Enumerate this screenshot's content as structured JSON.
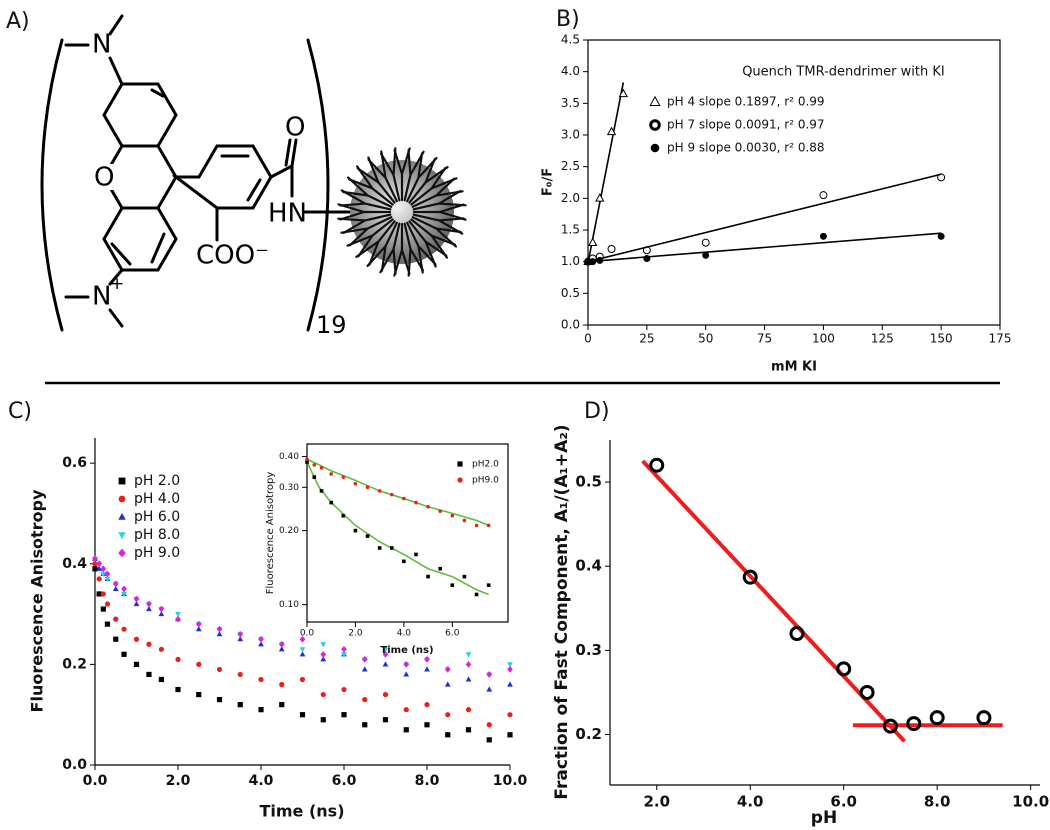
{
  "structure": {
    "label": "A)",
    "n_top": "N",
    "o_ring": "O",
    "n_bottom": "N",
    "charge": "+",
    "carbonyl_o": "O",
    "amide": "HN",
    "carboxylate": "COO⁻",
    "count": "19"
  },
  "chart_data": [
    {
      "type": "scatter",
      "label": "B)",
      "annotation": "Quench TMR-dendrimer with KI",
      "x_label": "mM KI",
      "y_label": "F₀/F",
      "xlim": [
        0,
        175
      ],
      "xticks": [
        0,
        25,
        50,
        75,
        100,
        125,
        150,
        175
      ],
      "ylim": [
        0,
        4.5
      ],
      "yticks": [
        {
          "value": 0,
          "label": "0.0"
        },
        0.5,
        {
          "value": 1,
          "label": "1.0"
        },
        1.5,
        {
          "value": 2,
          "label": "2.0"
        },
        2.5,
        {
          "value": 3,
          "label": "3.0"
        },
        3.5,
        {
          "value": 4,
          "label": "4.0"
        },
        4.5
      ],
      "legend": "upper left",
      "series": [
        {
          "name": "pH 4 slope 0.1897, r² 0.99",
          "color": "#000000",
          "marker": "triangle-open",
          "x": [
            0,
            2,
            5,
            10,
            15
          ],
          "values": [
            1.0,
            1.3,
            2.0,
            3.05,
            3.65
          ]
        },
        {
          "name": "pH 7 slope 0.0091, r² 0.97",
          "color": "#000000",
          "marker": "circle-open",
          "x": [
            0,
            2,
            5,
            10,
            25,
            50,
            100,
            150
          ],
          "values": [
            1.0,
            1.05,
            1.08,
            1.2,
            1.18,
            1.3,
            2.05,
            2.33
          ]
        },
        {
          "name": "pH 9 slope 0.0030, r² 0.88",
          "color": "#000000",
          "marker": "circle",
          "x": [
            0,
            2,
            5,
            25,
            50,
            100,
            150
          ],
          "values": [
            1.0,
            1.0,
            1.02,
            1.05,
            1.1,
            1.4,
            1.4
          ]
        }
      ],
      "fits": [
        {
          "color": "#000000",
          "x": [
            0,
            15
          ],
          "values": [
            0.98,
            3.83
          ]
        },
        {
          "color": "#000000",
          "x": [
            0,
            150
          ],
          "values": [
            1.0,
            2.38
          ]
        },
        {
          "color": "#000000",
          "x": [
            0,
            150
          ],
          "values": [
            1.0,
            1.45
          ]
        }
      ]
    },
    {
      "type": "scatter",
      "label": "C)",
      "x_label": "Time (ns)",
      "y_label": "Fluorescence Anisotropy",
      "xlim": [
        0,
        10
      ],
      "xticks": [
        {
          "value": 0,
          "label": "0.0"
        },
        {
          "value": 2,
          "label": "2.0"
        },
        {
          "value": 4,
          "label": "4.0"
        },
        {
          "value": 6,
          "label": "6.0"
        },
        {
          "value": 8,
          "label": "8.0"
        },
        {
          "value": 10,
          "label": "10.0"
        }
      ],
      "ylim": [
        0,
        0.65
      ],
      "yticks": [
        {
          "value": 0,
          "label": "0.0"
        },
        0.2,
        0.4,
        0.6
      ],
      "legend": "upper left",
      "x": [
        0,
        0.1,
        0.2,
        0.3,
        0.5,
        0.7,
        1,
        1.3,
        1.6,
        2,
        2.5,
        3,
        3.5,
        4,
        4.5,
        5,
        5.5,
        6,
        6.5,
        7,
        7.5,
        8,
        8.5,
        9,
        9.5,
        10
      ],
      "series": [
        {
          "name": "pH 2.0",
          "color": "#000000",
          "marker": "square",
          "values": [
            0.39,
            0.34,
            0.31,
            0.28,
            0.25,
            0.22,
            0.2,
            0.18,
            0.17,
            0.15,
            0.14,
            0.13,
            0.12,
            0.11,
            0.12,
            0.1,
            0.09,
            0.1,
            0.08,
            0.09,
            0.07,
            0.08,
            0.06,
            0.07,
            0.05,
            0.06
          ]
        },
        {
          "name": "pH 4.0",
          "color": "#e8201c",
          "marker": "circle",
          "values": [
            0.4,
            0.37,
            0.34,
            0.32,
            0.29,
            0.27,
            0.25,
            0.24,
            0.23,
            0.21,
            0.2,
            0.19,
            0.18,
            0.17,
            0.16,
            0.17,
            0.14,
            0.15,
            0.13,
            0.14,
            0.11,
            0.12,
            0.1,
            0.11,
            0.08,
            0.1
          ]
        },
        {
          "name": "pH 6.0",
          "color": "#1f2fd6",
          "marker": "triangle",
          "values": [
            0.41,
            0.39,
            0.38,
            0.37,
            0.35,
            0.34,
            0.32,
            0.31,
            0.3,
            0.29,
            0.27,
            0.26,
            0.25,
            0.24,
            0.23,
            0.22,
            0.21,
            0.22,
            0.19,
            0.2,
            0.18,
            0.19,
            0.16,
            0.17,
            0.15,
            0.16
          ]
        },
        {
          "name": "pH 8.0",
          "color": "#22d3e0",
          "marker": "triangle-down",
          "values": [
            0.41,
            0.4,
            0.38,
            0.37,
            0.36,
            0.34,
            0.33,
            0.32,
            0.31,
            0.3,
            0.28,
            0.27,
            0.26,
            0.25,
            0.24,
            0.23,
            0.24,
            0.22,
            0.21,
            0.23,
            0.2,
            0.21,
            0.19,
            0.22,
            0.18,
            0.2
          ]
        },
        {
          "name": "pH 9.0",
          "color": "#e020e0",
          "marker": "diamond",
          "values": [
            0.41,
            0.4,
            0.39,
            0.38,
            0.36,
            0.35,
            0.33,
            0.32,
            0.31,
            0.29,
            0.28,
            0.27,
            0.26,
            0.25,
            0.24,
            0.25,
            0.22,
            0.23,
            0.21,
            0.22,
            0.2,
            0.21,
            0.19,
            0.2,
            0.18,
            0.19
          ]
        }
      ]
    },
    {
      "type": "scatter",
      "x_label": "Time (ns)",
      "y_label": "Fluorescence Anisotropy",
      "log_y": true,
      "xlim": [
        0,
        8.3
      ],
      "xticks": [
        {
          "value": 0,
          "label": "0.0"
        },
        {
          "value": 2,
          "label": "2.0"
        },
        {
          "value": 4,
          "label": "4.0"
        },
        {
          "value": 6,
          "label": "6.0"
        }
      ],
      "ylim": [
        0.085,
        0.45
      ],
      "yticks": [
        {
          "value": 0.1,
          "label": "0.10"
        },
        {
          "value": 0.2,
          "label": "0.20"
        },
        {
          "value": 0.3,
          "label": "0.30"
        },
        {
          "value": 0.4,
          "label": "0.40"
        }
      ],
      "legend": "upper right",
      "x": [
        0,
        0.3,
        0.6,
        1,
        1.5,
        2,
        2.5,
        3,
        3.5,
        4,
        4.5,
        5,
        5.5,
        6,
        6.5,
        7,
        7.5
      ],
      "series": [
        {
          "name": "pH2.0",
          "color": "#000000",
          "marker": "square",
          "values": [
            0.38,
            0.33,
            0.29,
            0.26,
            0.23,
            0.2,
            0.19,
            0.17,
            0.17,
            0.15,
            0.16,
            0.13,
            0.14,
            0.12,
            0.13,
            0.11,
            0.12
          ]
        },
        {
          "name": "pH9.0",
          "color": "#e8201c",
          "marker": "circle",
          "values": [
            0.39,
            0.37,
            0.36,
            0.34,
            0.33,
            0.31,
            0.3,
            0.29,
            0.28,
            0.27,
            0.26,
            0.25,
            0.24,
            0.23,
            0.22,
            0.21,
            0.21
          ]
        }
      ],
      "fits": [
        {
          "color": "#5fbf3a",
          "x": [
            0,
            0.5,
            1,
            2,
            3,
            4,
            5,
            6,
            7,
            7.5
          ],
          "values": [
            0.38,
            0.3,
            0.26,
            0.21,
            0.18,
            0.16,
            0.14,
            0.13,
            0.115,
            0.11
          ]
        },
        {
          "color": "#5fbf3a",
          "x": [
            0,
            0.5,
            1,
            2,
            3,
            4,
            5,
            6,
            7,
            7.5
          ],
          "values": [
            0.39,
            0.37,
            0.35,
            0.32,
            0.29,
            0.27,
            0.25,
            0.235,
            0.22,
            0.21
          ]
        }
      ]
    },
    {
      "type": "scatter",
      "label": "D)",
      "x_label": "pH",
      "y_label": "Fraction of Fast Component, A₁/(A₁+A₂)",
      "xlim": [
        1,
        10.2
      ],
      "xticks": [
        {
          "value": 2,
          "label": "2.0"
        },
        {
          "value": 4,
          "label": "4.0"
        },
        {
          "value": 6,
          "label": "6.0"
        },
        {
          "value": 8,
          "label": "8.0"
        },
        {
          "value": 10,
          "label": "10.0"
        }
      ],
      "ylim": [
        0.14,
        0.55
      ],
      "yticks": [
        0.2,
        0.3,
        0.4,
        0.5
      ],
      "series": [
        {
          "color": "#000000",
          "marker": "circle-open",
          "x": [
            2,
            4,
            5,
            6,
            6.5,
            7,
            7.5,
            8,
            9
          ],
          "values": [
            0.52,
            0.387,
            0.32,
            0.278,
            0.25,
            0.21,
            0.213,
            0.22,
            0.22
          ]
        }
      ],
      "fits": [
        {
          "color": "#ee1c1c",
          "x": [
            1.7,
            7.3
          ],
          "values": [
            0.525,
            0.192
          ]
        },
        {
          "color": "#ee1c1c",
          "x": [
            6.2,
            9.4
          ],
          "values": [
            0.211,
            0.211
          ]
        }
      ]
    }
  ]
}
